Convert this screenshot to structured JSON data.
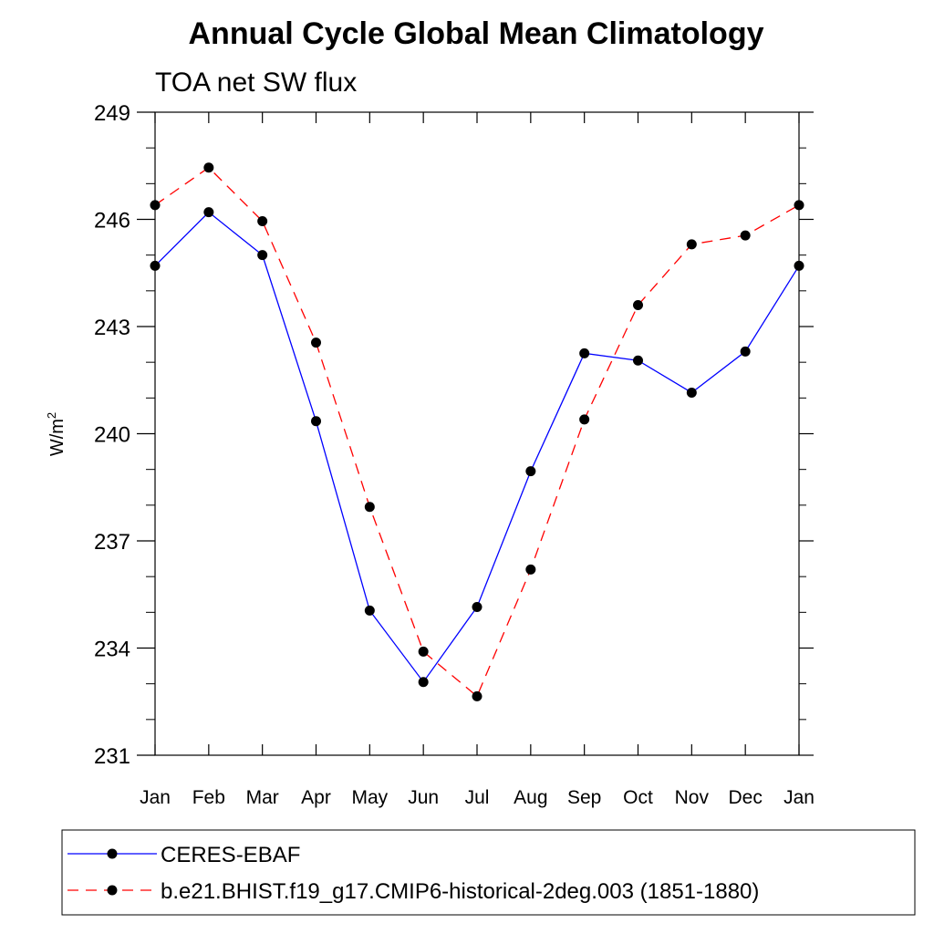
{
  "chart_data": {
    "type": "line",
    "title": "Annual Cycle Global Mean Climatology",
    "subtitle": "TOA net SW flux",
    "xlabel": "",
    "ylabel_base": "W/m",
    "ylabel_sup": "2",
    "categories": [
      "Jan",
      "Feb",
      "Mar",
      "Apr",
      "May",
      "Jun",
      "Jul",
      "Aug",
      "Sep",
      "Oct",
      "Nov",
      "Dec",
      "Jan"
    ],
    "ylim": [
      231,
      249
    ],
    "yticks": [
      231,
      234,
      237,
      240,
      243,
      246,
      249
    ],
    "ytick_labels": [
      "231",
      "234",
      "237",
      "240",
      "243",
      "246",
      "249"
    ],
    "legend_position": "bottom",
    "series": [
      {
        "name": "CERES-EBAF",
        "color": "#0000ff",
        "line_style": "solid",
        "values": [
          244.7,
          246.2,
          245.0,
          240.35,
          235.05,
          233.05,
          235.15,
          238.95,
          242.25,
          242.05,
          241.15,
          242.3,
          244.7
        ]
      },
      {
        "name": "b.e21.BHIST.f19_g17.CMIP6-historical-2deg.003 (1851-1880)",
        "color": "#ff0000",
        "line_style": "dashed",
        "values": [
          246.4,
          247.45,
          245.95,
          242.55,
          237.95,
          233.9,
          232.65,
          236.2,
          240.4,
          243.6,
          245.3,
          245.55,
          246.4
        ]
      }
    ]
  }
}
